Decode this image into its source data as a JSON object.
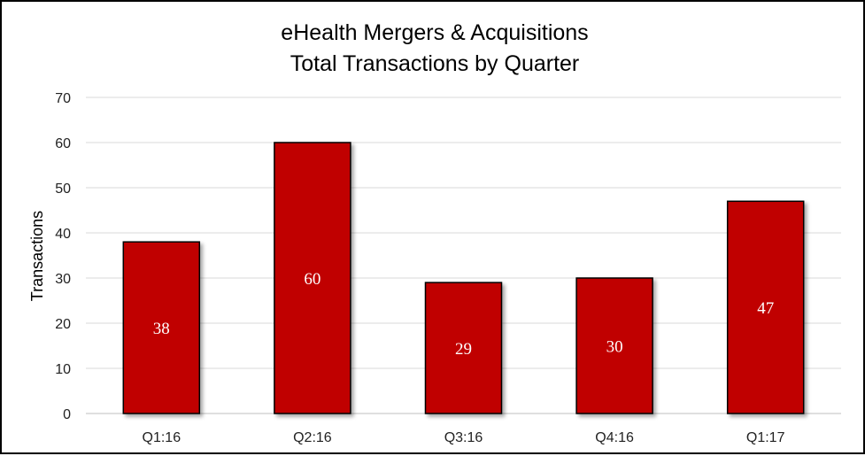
{
  "chart_data": {
    "type": "bar",
    "title": "eHealth Mergers & Acquisitions",
    "subtitle": "Total Transactions by Quarter",
    "xlabel": "",
    "ylabel": "Transactions",
    "categories": [
      "Q1:16",
      "Q2:16",
      "Q3:16",
      "Q4:16",
      "Q1:17"
    ],
    "series": [
      {
        "values": [
          38,
          60,
          29,
          30,
          47
        ]
      }
    ],
    "data_labels": [
      "38",
      "60",
      "29",
      "30",
      "47"
    ],
    "ylim": [
      0,
      70
    ],
    "yticks": [
      0,
      10,
      20,
      30,
      40,
      50,
      60,
      70
    ],
    "ytick_labels": [
      "0",
      "10",
      "20",
      "30",
      "40",
      "50",
      "60",
      "70"
    ],
    "grid": true,
    "legend": "none",
    "colors": {
      "bar": "#C00000",
      "bar_edge": "#000000",
      "grid": "#D9D9D9",
      "data_label": "#FFFFFF"
    }
  }
}
